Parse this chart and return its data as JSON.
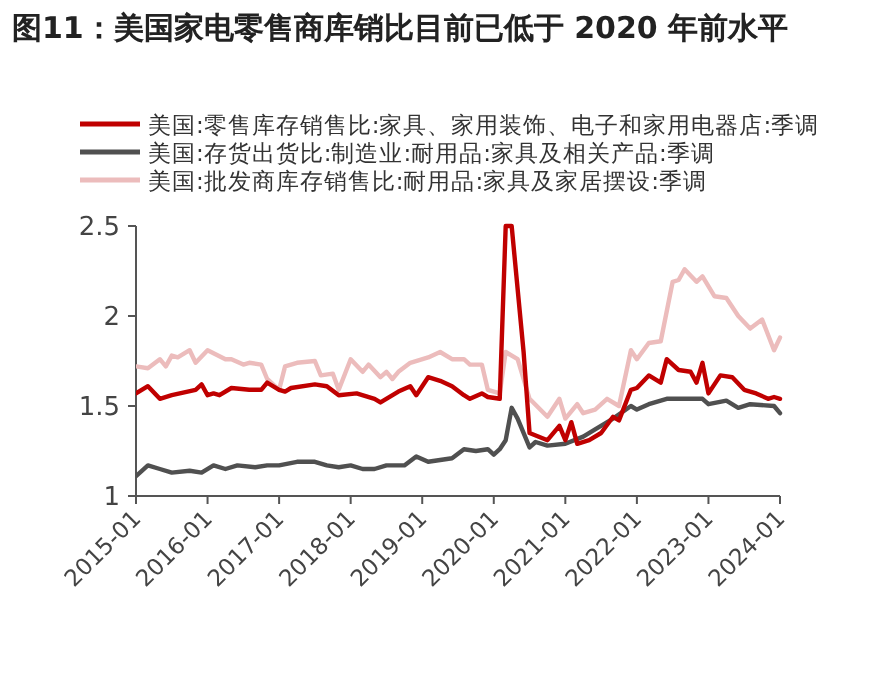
{
  "chart_data": {
    "type": "line",
    "title": "图11：美国家电零售商库销比目前已低于 2020 年前水平",
    "legend": "top",
    "grid": false,
    "marker": "none",
    "line_style": "solid",
    "xlim": [
      "2015-01",
      "2024-01"
    ],
    "xticks": [
      {
        "value": "2015-01",
        "label": "2015-01"
      },
      {
        "value": "2016-01",
        "label": "2016-01"
      },
      {
        "value": "2017-01",
        "label": "2017-01"
      },
      {
        "value": "2018-01",
        "label": "2018-01"
      },
      {
        "value": "2019-01",
        "label": "2019-01"
      },
      {
        "value": "2020-01",
        "label": "2020-01"
      },
      {
        "value": "2021-01",
        "label": "2021-01"
      },
      {
        "value": "2022-01",
        "label": "2022-01"
      },
      {
        "value": "2023-01",
        "label": "2023-01"
      },
      {
        "value": "2024-01",
        "label": "2024-01"
      }
    ],
    "ylim": [
      1,
      2.5
    ],
    "yticks": [
      1,
      1.5,
      2,
      2.5
    ],
    "series": [
      {
        "name": "美国:零售库存销售比:家具、家用装饰、电子和家用电器店:季调",
        "color": "#c00000",
        "x": [
          "2015-01",
          "2015-03",
          "2015-05",
          "2015-07",
          "2015-11",
          "2015-12",
          "2016-01",
          "2016-02",
          "2016-03",
          "2016-05",
          "2016-08",
          "2016-10",
          "2016-11",
          "2017-01",
          "2017-02",
          "2017-03",
          "2017-07",
          "2017-09",
          "2017-11",
          "2018-02",
          "2018-05",
          "2018-06",
          "2018-09",
          "2018-11",
          "2018-12",
          "2019-02",
          "2019-04",
          "2019-06",
          "2019-08",
          "2019-09",
          "2019-11",
          "2019-12",
          "2020-02",
          "2020-03",
          "2020-04",
          "2020-06",
          "2020-07",
          "2020-10",
          "2020-12",
          "2021-01",
          "2021-02",
          "2021-03",
          "2021-05",
          "2021-07",
          "2021-09",
          "2021-10",
          "2021-12",
          "2022-01",
          "2022-03",
          "2022-05",
          "2022-06",
          "2022-08",
          "2022-10",
          "2022-11",
          "2022-12",
          "2023-01",
          "2023-03",
          "2023-05",
          "2023-07",
          "2023-09",
          "2023-11",
          "2023-12",
          "2024-01"
        ],
        "values": [
          1.57,
          1.61,
          1.54,
          1.56,
          1.59,
          1.62,
          1.56,
          1.57,
          1.56,
          1.6,
          1.59,
          1.59,
          1.63,
          1.59,
          1.58,
          1.6,
          1.62,
          1.61,
          1.56,
          1.57,
          1.54,
          1.52,
          1.58,
          1.61,
          1.56,
          1.66,
          1.64,
          1.61,
          1.56,
          1.54,
          1.57,
          1.55,
          1.54,
          2.5,
          2.5,
          1.8,
          1.35,
          1.31,
          1.39,
          1.31,
          1.41,
          1.29,
          1.31,
          1.35,
          1.44,
          1.42,
          1.59,
          1.6,
          1.67,
          1.63,
          1.76,
          1.7,
          1.69,
          1.63,
          1.74,
          1.57,
          1.67,
          1.66,
          1.59,
          1.57,
          1.54,
          1.55,
          1.54
        ]
      },
      {
        "name": "美国:存货出货比:制造业:耐用品:家具及相关产品:季调",
        "color": "#505050",
        "x": [
          "2015-01",
          "2015-03",
          "2015-05",
          "2015-07",
          "2015-10",
          "2015-12",
          "2016-02",
          "2016-04",
          "2016-06",
          "2016-09",
          "2016-11",
          "2017-01",
          "2017-04",
          "2017-07",
          "2017-09",
          "2017-11",
          "2018-01",
          "2018-03",
          "2018-05",
          "2018-07",
          "2018-10",
          "2018-12",
          "2019-02",
          "2019-04",
          "2019-06",
          "2019-08",
          "2019-10",
          "2019-12",
          "2020-01",
          "2020-02",
          "2020-03",
          "2020-04",
          "2020-05",
          "2020-07",
          "2020-08",
          "2020-10",
          "2021-01",
          "2021-04",
          "2021-06",
          "2021-09",
          "2021-12",
          "2022-01",
          "2022-03",
          "2022-06",
          "2022-10",
          "2022-12",
          "2023-01",
          "2023-04",
          "2023-06",
          "2023-08",
          "2023-12",
          "2024-01"
        ],
        "values": [
          1.11,
          1.17,
          1.15,
          1.13,
          1.14,
          1.13,
          1.17,
          1.15,
          1.17,
          1.16,
          1.17,
          1.17,
          1.19,
          1.19,
          1.17,
          1.16,
          1.17,
          1.15,
          1.15,
          1.17,
          1.17,
          1.22,
          1.19,
          1.2,
          1.21,
          1.26,
          1.25,
          1.26,
          1.23,
          1.26,
          1.31,
          1.49,
          1.43,
          1.27,
          1.3,
          1.28,
          1.29,
          1.33,
          1.37,
          1.43,
          1.5,
          1.48,
          1.51,
          1.54,
          1.54,
          1.54,
          1.51,
          1.53,
          1.49,
          1.51,
          1.5,
          1.46
        ]
      },
      {
        "name": "美国:批发商库存销售比:耐用品:家具及家居摆设:季调",
        "color": "#ecbcbc",
        "x": [
          "2015-01",
          "2015-03",
          "2015-05",
          "2015-06",
          "2015-07",
          "2015-08",
          "2015-10",
          "2015-11",
          "2016-01",
          "2016-04",
          "2016-05",
          "2016-07",
          "2016-08",
          "2016-10",
          "2016-11",
          "2017-01",
          "2017-02",
          "2017-04",
          "2017-07",
          "2017-08",
          "2017-10",
          "2017-11",
          "2018-01",
          "2018-03",
          "2018-04",
          "2018-06",
          "2018-07",
          "2018-08",
          "2018-09",
          "2018-11",
          "2019-02",
          "2019-04",
          "2019-06",
          "2019-08",
          "2019-09",
          "2019-11",
          "2019-12",
          "2020-02",
          "2020-03",
          "2020-05",
          "2020-07",
          "2020-10",
          "2020-12",
          "2021-01",
          "2021-03",
          "2021-04",
          "2021-06",
          "2021-08",
          "2021-10",
          "2021-12",
          "2022-01",
          "2022-03",
          "2022-05",
          "2022-07",
          "2022-08",
          "2022-09",
          "2022-11",
          "2022-12",
          "2023-02",
          "2023-04",
          "2023-06",
          "2023-08",
          "2023-10",
          "2023-12",
          "2024-01"
        ],
        "values": [
          1.72,
          1.71,
          1.76,
          1.72,
          1.78,
          1.77,
          1.81,
          1.74,
          1.81,
          1.76,
          1.76,
          1.73,
          1.74,
          1.73,
          1.65,
          1.59,
          1.72,
          1.74,
          1.75,
          1.67,
          1.68,
          1.59,
          1.76,
          1.69,
          1.73,
          1.66,
          1.69,
          1.65,
          1.69,
          1.74,
          1.77,
          1.8,
          1.76,
          1.76,
          1.73,
          1.73,
          1.59,
          1.57,
          1.8,
          1.76,
          1.54,
          1.44,
          1.54,
          1.43,
          1.51,
          1.46,
          1.48,
          1.54,
          1.5,
          1.81,
          1.76,
          1.85,
          1.86,
          2.19,
          2.2,
          2.26,
          2.19,
          2.22,
          2.11,
          2.1,
          2.0,
          1.93,
          1.98,
          1.81,
          1.88
        ]
      }
    ]
  }
}
